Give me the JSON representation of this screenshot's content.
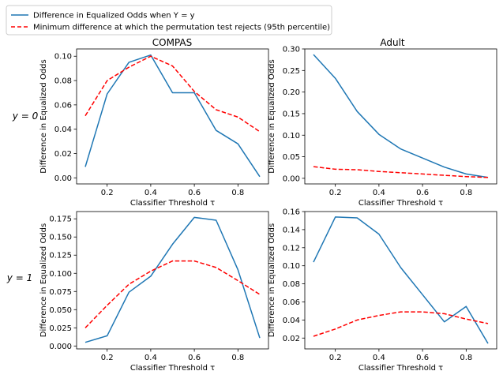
{
  "figure": {
    "legend": [
      {
        "label": "Difference in Equalized Odds when Y = y",
        "color": "#1f77b4",
        "style": "solid"
      },
      {
        "label": "Minimum difference at which the permutation test rejects (95th percentile)",
        "color": "#ff0000",
        "style": "dashed"
      }
    ],
    "row_labels": [
      "y = 0",
      "y = 1"
    ],
    "column_titles": [
      "COMPAS",
      "Adult"
    ]
  },
  "chart_data": [
    {
      "type": "line",
      "title": "COMPAS",
      "row_label": "y = 0",
      "xlabel": "Classifier Threshold τ",
      "ylabel": "Difference in Equalized Odds",
      "x": [
        0.1,
        0.2,
        0.3,
        0.4,
        0.5,
        0.6,
        0.7,
        0.8,
        0.9
      ],
      "xlim": [
        0.06,
        0.94
      ],
      "ylim": [
        -0.005,
        0.106
      ],
      "xticks": [
        0.2,
        0.4,
        0.6,
        0.8
      ],
      "xtick_labels": [
        "0.2",
        "0.4",
        "0.6",
        "0.8"
      ],
      "yticks": [
        0.0,
        0.02,
        0.04,
        0.06,
        0.08,
        0.1
      ],
      "ytick_labels": [
        "0.00",
        "0.02",
        "0.04",
        "0.06",
        "0.08",
        "0.10"
      ],
      "series": [
        {
          "name": "Difference in Equalized Odds when Y = y",
          "color": "#1f77b4",
          "style": "solid",
          "values": [
            0.009,
            0.069,
            0.095,
            0.101,
            0.07,
            0.07,
            0.039,
            0.028,
            0.001
          ]
        },
        {
          "name": "Minimum difference at which the permutation test rejects (95th percentile)",
          "color": "#ff0000",
          "style": "dashed",
          "values": [
            0.051,
            0.08,
            0.091,
            0.1,
            0.092,
            0.071,
            0.056,
            0.05,
            0.038
          ]
        }
      ]
    },
    {
      "type": "line",
      "title": "Adult",
      "row_label": "y = 0",
      "xlabel": "Classifier Threshold τ",
      "ylabel": "Difference in Equalized Odds",
      "x": [
        0.1,
        0.2,
        0.3,
        0.4,
        0.5,
        0.6,
        0.7,
        0.8,
        0.9
      ],
      "xlim": [
        0.06,
        0.94
      ],
      "ylim": [
        -0.013,
        0.3
      ],
      "xticks": [
        0.2,
        0.4,
        0.6,
        0.8
      ],
      "xtick_labels": [
        "0.2",
        "0.4",
        "0.6",
        "0.8"
      ],
      "yticks": [
        0.0,
        0.05,
        0.1,
        0.15,
        0.2,
        0.25,
        0.3
      ],
      "ytick_labels": [
        "0.00",
        "0.05",
        "0.10",
        "0.15",
        "0.20",
        "0.25",
        "0.30"
      ],
      "series": [
        {
          "name": "Difference in Equalized Odds when Y = y",
          "color": "#1f77b4",
          "style": "solid",
          "values": [
            0.287,
            0.232,
            0.155,
            0.102,
            0.068,
            0.047,
            0.026,
            0.01,
            0.002
          ]
        },
        {
          "name": "Minimum difference at which the permutation test rejects (95th percentile)",
          "color": "#ff0000",
          "style": "dashed",
          "values": [
            0.027,
            0.021,
            0.02,
            0.016,
            0.013,
            0.01,
            0.007,
            0.004,
            0.002
          ]
        }
      ]
    },
    {
      "type": "line",
      "row_label": "y = 1",
      "xlabel": "Classifier Threshold τ",
      "ylabel": "Difference in Equalized Odds",
      "x": [
        0.1,
        0.2,
        0.3,
        0.4,
        0.5,
        0.6,
        0.7,
        0.8,
        0.9
      ],
      "xlim": [
        0.06,
        0.94
      ],
      "ylim": [
        -0.004,
        0.185
      ],
      "xticks": [
        0.2,
        0.4,
        0.6,
        0.8
      ],
      "xtick_labels": [
        "0.2",
        "0.4",
        "0.6",
        "0.8"
      ],
      "yticks": [
        0.0,
        0.025,
        0.05,
        0.075,
        0.1,
        0.125,
        0.15,
        0.175
      ],
      "ytick_labels": [
        "0.000",
        "0.025",
        "0.050",
        "0.075",
        "0.100",
        "0.125",
        "0.150",
        "0.175"
      ],
      "series": [
        {
          "name": "Difference in Equalized Odds when Y = y",
          "color": "#1f77b4",
          "style": "solid",
          "values": [
            0.005,
            0.014,
            0.074,
            0.096,
            0.14,
            0.177,
            0.173,
            0.105,
            0.011
          ]
        },
        {
          "name": "Minimum difference at which the permutation test rejects (95th percentile)",
          "color": "#ff0000",
          "style": "dashed",
          "values": [
            0.025,
            0.056,
            0.085,
            0.103,
            0.117,
            0.117,
            0.108,
            0.09,
            0.071
          ]
        }
      ]
    },
    {
      "type": "line",
      "row_label": "y = 1",
      "xlabel": "Classifier Threshold τ",
      "ylabel": "Difference in Equalized Odds",
      "x": [
        0.1,
        0.2,
        0.3,
        0.4,
        0.5,
        0.6,
        0.7,
        0.8,
        0.9
      ],
      "xlim": [
        0.06,
        0.94
      ],
      "ylim": [
        0.008,
        0.16
      ],
      "xticks": [
        0.2,
        0.4,
        0.6,
        0.8
      ],
      "xtick_labels": [
        "0.2",
        "0.4",
        "0.6",
        "0.8"
      ],
      "yticks": [
        0.02,
        0.04,
        0.06,
        0.08,
        0.1,
        0.12,
        0.14,
        0.16
      ],
      "ytick_labels": [
        "0.02",
        "0.04",
        "0.06",
        "0.08",
        "0.10",
        "0.12",
        "0.14",
        "0.16"
      ],
      "series": [
        {
          "name": "Difference in Equalized Odds when Y = y",
          "color": "#1f77b4",
          "style": "solid",
          "values": [
            0.104,
            0.154,
            0.153,
            0.135,
            0.098,
            0.068,
            0.038,
            0.055,
            0.014
          ]
        },
        {
          "name": "Minimum difference at which the permutation test rejects (95th percentile)",
          "color": "#ff0000",
          "style": "dashed",
          "values": [
            0.022,
            0.03,
            0.04,
            0.045,
            0.049,
            0.049,
            0.047,
            0.041,
            0.036
          ]
        }
      ]
    }
  ]
}
